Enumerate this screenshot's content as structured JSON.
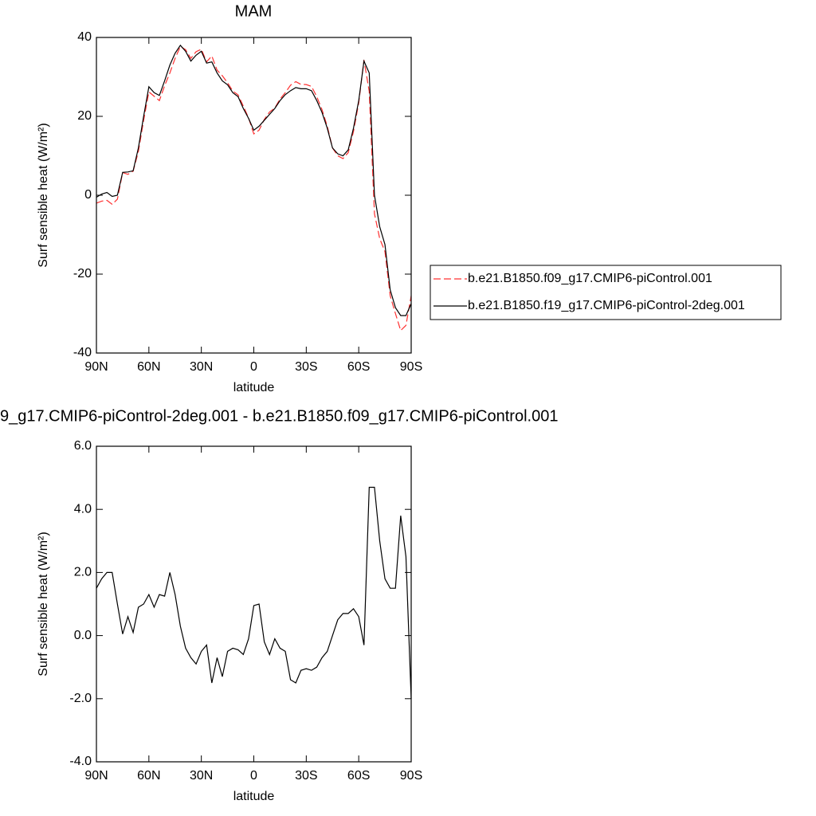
{
  "chart_data": [
    {
      "type": "line",
      "title": "MAM",
      "x_label": "latitude",
      "y_label": "Surf sensible heat (W/m²)",
      "x": [
        90,
        87,
        84,
        81,
        78,
        75,
        72,
        69,
        66,
        63,
        60,
        57,
        54,
        51,
        48,
        45,
        42,
        39,
        36,
        33,
        30,
        27,
        24,
        21,
        18,
        15,
        12,
        9,
        6,
        3,
        0,
        -3,
        -6,
        -9,
        -12,
        -15,
        -18,
        -21,
        -24,
        -27,
        -30,
        -33,
        -36,
        -39,
        -42,
        -45,
        -48,
        -51,
        -54,
        -57,
        -60,
        -63,
        -66,
        -69,
        -72,
        -75,
        -78,
        -81,
        -84,
        -87,
        -90
      ],
      "series": [
        {
          "name": "b.e21.B1850.f09_g17.CMIP6-piControl.001",
          "color": "#ff3030",
          "line_style": "dashed",
          "values": [
            -2.0,
            -1.5,
            -1.3,
            -2.3,
            -1.0,
            5.75,
            5.3,
            6.1,
            11.1,
            19.0,
            26.2,
            25.1,
            24.0,
            27.75,
            31.0,
            34.7,
            37.7,
            36.9,
            34.7,
            36.4,
            37.0,
            33.8,
            35.3,
            31.7,
            30.3,
            28.5,
            26.4,
            25.45,
            22.6,
            19.6,
            15.55,
            16.5,
            19.2,
            21.1,
            22.1,
            24.4,
            26.0,
            27.9,
            28.8,
            28.1,
            28.05,
            27.6,
            25.0,
            21.7,
            17.5,
            12.0,
            10.0,
            9.3,
            10.8,
            16.15,
            23.4,
            34.3,
            26.3,
            -4.7,
            -11,
            -14.3,
            -25.5,
            -30,
            -34.3,
            -33,
            -25.5
          ]
        },
        {
          "name": "b.e21.B1850.f19_g17.CMIP6-piControl-2deg.001",
          "color": "#000000",
          "line_style": "solid",
          "values": [
            -0.5,
            0.3,
            0.7,
            -0.3,
            0,
            5.8,
            5.9,
            6.2,
            12,
            20,
            27.5,
            26,
            25.3,
            29,
            33,
            36,
            38,
            36.5,
            34,
            35.5,
            36.5,
            33.5,
            33.8,
            31,
            29,
            28,
            26,
            25,
            22,
            19.5,
            16.5,
            17.5,
            19,
            20.5,
            22,
            24,
            25.5,
            26.5,
            27.3,
            27,
            27,
            26.5,
            24,
            21,
            17,
            12,
            10.5,
            10,
            11.5,
            17,
            24,
            34,
            31,
            0,
            -8,
            -12.5,
            -24,
            -28.5,
            -30.5,
            -30.5,
            -27.5
          ]
        }
      ],
      "xlim": [
        90,
        -90
      ],
      "xticks": [
        {
          "value": 90,
          "label": "90N"
        },
        {
          "value": 60,
          "label": "60N"
        },
        {
          "value": 30,
          "label": "30N"
        },
        0,
        {
          "value": -30,
          "label": "30S"
        },
        {
          "value": -60,
          "label": "60S"
        },
        {
          "value": -90,
          "label": "90S"
        }
      ],
      "ylim": [
        -40,
        40
      ],
      "yticks": [
        -40,
        -20,
        0,
        20,
        40
      ],
      "legend_position": "right"
    },
    {
      "type": "line",
      "title": "9_g17.CMIP6-piControl-2deg.001 - b.e21.B1850.f09_g17.CMIP6-piControl.001",
      "x_label": "latitude",
      "y_label": "Surf sensible heat (W/m²)",
      "x": [
        90,
        87,
        84,
        81,
        78,
        75,
        72,
        69,
        66,
        63,
        60,
        57,
        54,
        51,
        48,
        45,
        42,
        39,
        36,
        33,
        30,
        27,
        24,
        21,
        18,
        15,
        12,
        9,
        6,
        3,
        0,
        -3,
        -6,
        -9,
        -12,
        -15,
        -18,
        -21,
        -24,
        -27,
        -30,
        -33,
        -36,
        -39,
        -42,
        -45,
        -48,
        -51,
        -54,
        -57,
        -60,
        -63,
        -66,
        -69,
        -72,
        -75,
        -78,
        -81,
        -84,
        -87,
        -90
      ],
      "series": [
        {
          "color": "#000000",
          "line_style": "solid",
          "values": [
            1.5,
            1.8,
            2.0,
            2.0,
            1.0,
            0.05,
            0.6,
            0.1,
            0.9,
            1.0,
            1.3,
            0.9,
            1.3,
            1.25,
            2.0,
            1.3,
            0.3,
            -0.4,
            -0.7,
            -0.9,
            -0.5,
            -0.3,
            -1.5,
            -0.7,
            -1.3,
            -0.5,
            -0.4,
            -0.45,
            -0.6,
            -0.1,
            0.95,
            1.0,
            -0.2,
            -0.6,
            -0.1,
            -0.4,
            -0.5,
            -1.4,
            -1.5,
            -1.1,
            -1.05,
            -1.1,
            -1.0,
            -0.7,
            -0.5,
            0.0,
            0.5,
            0.7,
            0.7,
            0.85,
            0.6,
            -0.3,
            4.7,
            4.7,
            3.0,
            1.8,
            1.5,
            1.5,
            3.8,
            2.5,
            -2.0
          ]
        }
      ],
      "xlim": [
        90,
        -90
      ],
      "xticks": [
        {
          "value": 90,
          "label": "90N"
        },
        {
          "value": 60,
          "label": "60N"
        },
        {
          "value": 30,
          "label": "30N"
        },
        0,
        {
          "value": -30,
          "label": "30S"
        },
        {
          "value": -60,
          "label": "60S"
        },
        {
          "value": -90,
          "label": "90S"
        }
      ],
      "ylim": [
        -4,
        6
      ],
      "yticks": [
        {
          "value": -4,
          "label": "-4.0"
        },
        {
          "value": -2,
          "label": "-2.0"
        },
        {
          "value": 0,
          "label": "0.0"
        },
        {
          "value": 2,
          "label": "2.0"
        },
        {
          "value": 4,
          "label": "4.0"
        },
        {
          "value": 6,
          "label": "6.0"
        }
      ]
    }
  ]
}
